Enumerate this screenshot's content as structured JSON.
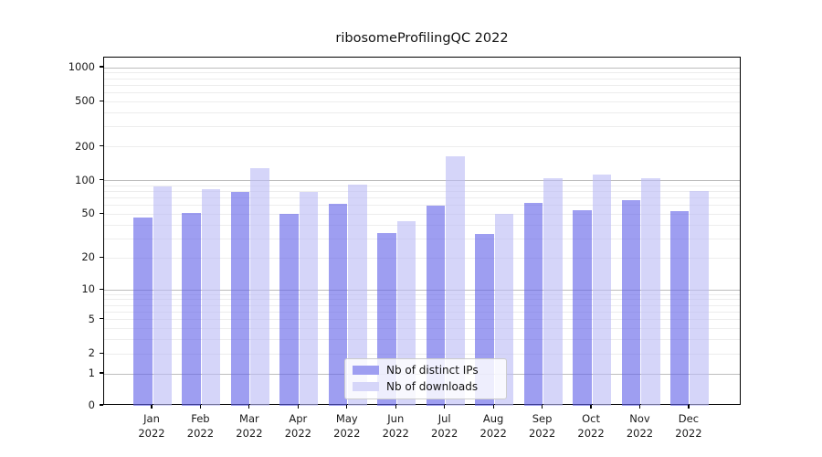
{
  "chart_data": {
    "type": "bar",
    "title": "ribosomeProfilingQC 2022",
    "year_label": "2022",
    "categories": [
      "Jan",
      "Feb",
      "Mar",
      "Apr",
      "May",
      "Jun",
      "Jul",
      "Aug",
      "Sep",
      "Oct",
      "Nov",
      "Dec"
    ],
    "series": [
      {
        "name": "Nb of distinct IPs",
        "color": "rgba(98,98,232,0.62)",
        "legend_color": "#9e9ef1",
        "values": [
          47,
          51,
          79,
          50,
          62,
          34,
          60,
          33,
          63,
          54,
          67,
          53
        ]
      },
      {
        "name": "Nb of downloads",
        "color": "rgba(188,188,246,0.62)",
        "legend_color": "#d6d6f9",
        "values": [
          88,
          84,
          128,
          79,
          92,
          43,
          166,
          50,
          106,
          113,
          106,
          81
        ]
      }
    ],
    "y_axis": {
      "scale": "log1p",
      "ticks": [
        0,
        1,
        2,
        5,
        10,
        20,
        50,
        100,
        200,
        500,
        1000
      ]
    },
    "grid": {
      "major_levels": [
        1,
        10,
        100,
        1000
      ],
      "minor_multipliers": [
        2,
        3,
        4,
        5,
        6,
        7,
        8,
        9
      ],
      "major_color": "#bdbdbd",
      "minor_color": "#ededed"
    },
    "legend_position": "lower center inside",
    "colors": {
      "ips_bar_effective": "#9e9ef1",
      "downloads_bar_effective": "#d6d6f9",
      "frame": "#000000",
      "background": "#ffffff"
    }
  }
}
